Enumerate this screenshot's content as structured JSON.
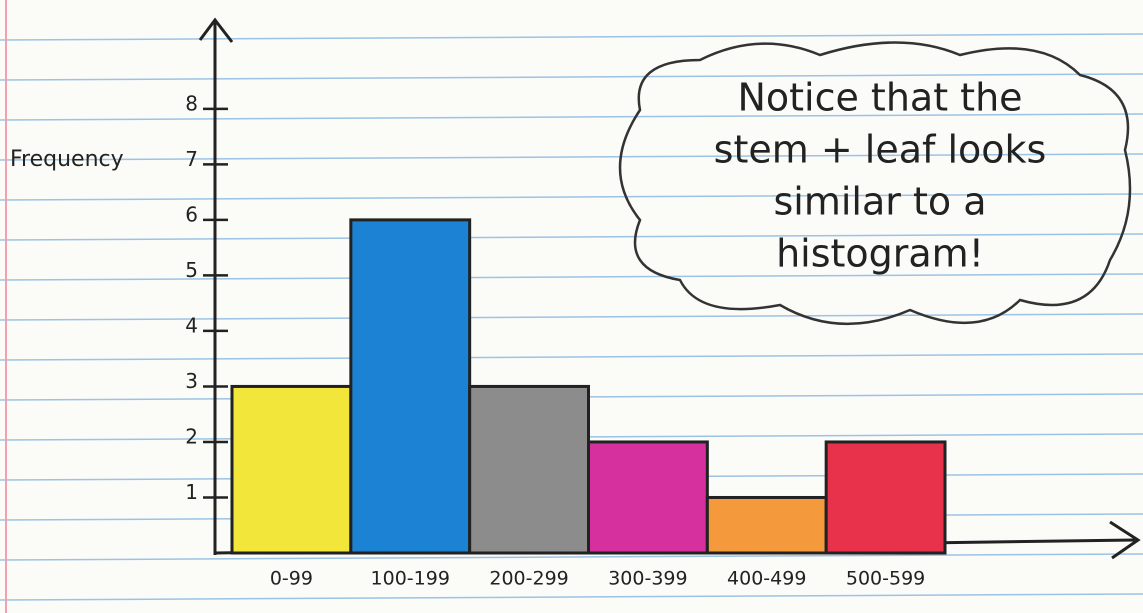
{
  "chart_data": {
    "type": "bar",
    "y_label": "Frequency",
    "categories": [
      "0-99",
      "100-199",
      "200-299",
      "300-399",
      "400-499",
      "500-599"
    ],
    "values": [
      3,
      6,
      3,
      2,
      1,
      2
    ],
    "colors": [
      "#f2e63a",
      "#1c82d4",
      "#8c8c8c",
      "#d6309f",
      "#f59a3c",
      "#e8324c"
    ],
    "ylim": [
      0,
      9.6
    ],
    "yticks": [
      1,
      2,
      3,
      4,
      5,
      6,
      7,
      8
    ],
    "annotation": [
      "Notice that the",
      "stem + leaf looks",
      "similar to a",
      "histogram!"
    ]
  }
}
